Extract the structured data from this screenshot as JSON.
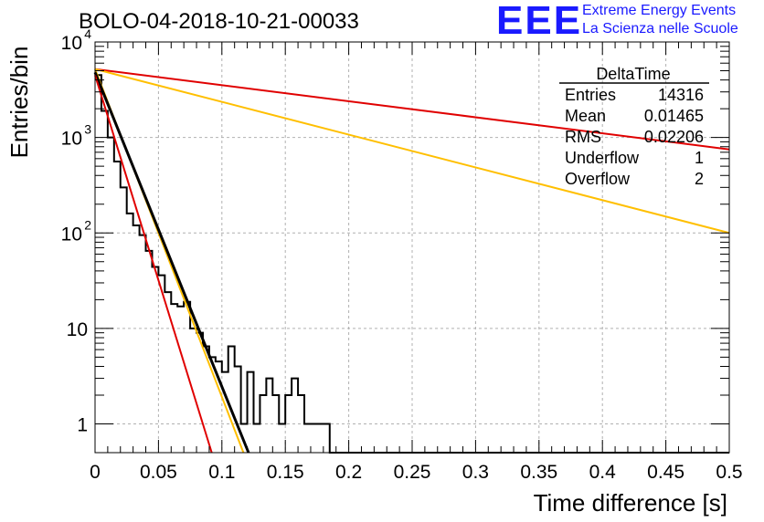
{
  "title": "BOLO-04-2018-10-21-00033",
  "logo": {
    "mark": "EEE",
    "line1": "Extreme Energy Events",
    "line2": "La Scienza nelle Scuole",
    "color": "#1a1aff"
  },
  "stats": {
    "name": "DeltaTime",
    "rows": [
      {
        "label": "Entries",
        "value": "14316"
      },
      {
        "label": "Mean",
        "value": "0.01465"
      },
      {
        "label": "RMS",
        "value": "0.02206"
      },
      {
        "label": "Underflow",
        "value": "1"
      },
      {
        "label": "Overflow",
        "value": "2"
      }
    ]
  },
  "chart_data": {
    "type": "line",
    "title": "BOLO-04-2018-10-21-00033",
    "xlabel": "Time difference [s]",
    "ylabel": "Entries/bin",
    "xlim": [
      0,
      0.5
    ],
    "ylim": [
      0.5,
      10000
    ],
    "yscale": "log",
    "grid": true,
    "x_ticks": [
      "0",
      "0.05",
      "0.1",
      "0.15",
      "0.2",
      "0.25",
      "0.3",
      "0.35",
      "0.4",
      "0.45",
      "0.5"
    ],
    "y_ticks": [
      {
        "value": 1,
        "label": "1"
      },
      {
        "value": 10,
        "label": "10"
      },
      {
        "value": 100,
        "label": "10",
        "exp": "2"
      },
      {
        "value": 1000,
        "label": "10",
        "exp": "3"
      },
      {
        "value": 10000,
        "label": "10",
        "exp": "4"
      }
    ],
    "legend_position": "top-right",
    "histogram": {
      "color": "#000000",
      "bin_width": 0.005,
      "counts": [
        4500,
        1900,
        1000,
        560,
        300,
        160,
        120,
        95,
        65,
        44,
        36,
        24,
        18,
        17,
        19,
        10,
        9,
        6.5,
        5,
        4.5,
        3.5,
        6.5,
        4,
        1,
        3.5,
        1,
        2,
        3,
        2,
        1,
        2,
        3,
        2,
        1,
        1,
        1,
        1,
        0,
        0,
        0,
        0,
        0,
        0,
        0,
        0,
        0,
        0,
        0,
        0,
        0,
        0,
        0,
        0,
        0,
        0,
        0,
        0,
        0,
        0,
        0,
        0,
        0,
        0,
        0,
        0,
        0,
        0,
        0,
        0,
        0,
        0,
        0,
        0,
        0,
        0,
        0,
        0,
        0,
        0,
        0,
        0,
        0,
        0,
        0,
        0,
        0,
        0,
        0,
        0,
        0,
        0,
        0,
        0,
        0,
        0,
        0,
        0,
        0,
        0,
        0,
        0,
        0
      ]
    },
    "series": [
      {
        "color": "#e00000",
        "x": [
          0,
          0.5
        ],
        "y": [
          5200,
          750
        ]
      },
      {
        "color": "#ffbf00",
        "x": [
          0,
          0.5
        ],
        "y": [
          5200,
          100
        ]
      },
      {
        "color": "#ffbf00",
        "x": [
          0,
          0.117
        ],
        "y": [
          5200,
          0.5
        ]
      },
      {
        "color": "#000000",
        "x": [
          0,
          0.121
        ],
        "y": [
          4800,
          0.5
        ]
      },
      {
        "color": "#e00000",
        "x": [
          0,
          0.092
        ],
        "y": [
          4500,
          0.5
        ]
      }
    ]
  }
}
